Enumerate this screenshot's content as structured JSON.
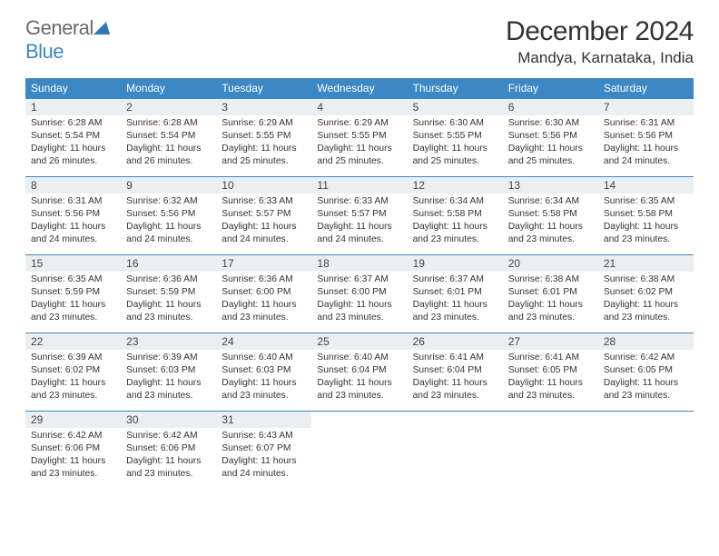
{
  "brand": {
    "part1": "General",
    "part2": "Blue"
  },
  "title": "December 2024",
  "location": "Mandya, Karnataka, India",
  "colors": {
    "header_bg": "#3b88c4",
    "header_text": "#ffffff",
    "daynum_bg": "#eceff1",
    "border": "#3b88c4",
    "text": "#333333",
    "logo_gray": "#6a6a6a",
    "logo_blue": "#3b88c4",
    "page_bg": "#ffffff"
  },
  "typography": {
    "title_fontsize": 30,
    "location_fontsize": 17,
    "dayhdr_fontsize": 12,
    "daynum_fontsize": 12,
    "body_fontsize": 10.3
  },
  "layout": {
    "columns": 7,
    "cell_min_height": 86
  },
  "weekdays": [
    "Sunday",
    "Monday",
    "Tuesday",
    "Wednesday",
    "Thursday",
    "Friday",
    "Saturday"
  ],
  "days": [
    {
      "n": "1",
      "sr": "Sunrise: 6:28 AM",
      "ss": "Sunset: 5:54 PM",
      "d1": "Daylight: 11 hours",
      "d2": "and 26 minutes."
    },
    {
      "n": "2",
      "sr": "Sunrise: 6:28 AM",
      "ss": "Sunset: 5:54 PM",
      "d1": "Daylight: 11 hours",
      "d2": "and 26 minutes."
    },
    {
      "n": "3",
      "sr": "Sunrise: 6:29 AM",
      "ss": "Sunset: 5:55 PM",
      "d1": "Daylight: 11 hours",
      "d2": "and 25 minutes."
    },
    {
      "n": "4",
      "sr": "Sunrise: 6:29 AM",
      "ss": "Sunset: 5:55 PM",
      "d1": "Daylight: 11 hours",
      "d2": "and 25 minutes."
    },
    {
      "n": "5",
      "sr": "Sunrise: 6:30 AM",
      "ss": "Sunset: 5:55 PM",
      "d1": "Daylight: 11 hours",
      "d2": "and 25 minutes."
    },
    {
      "n": "6",
      "sr": "Sunrise: 6:30 AM",
      "ss": "Sunset: 5:56 PM",
      "d1": "Daylight: 11 hours",
      "d2": "and 25 minutes."
    },
    {
      "n": "7",
      "sr": "Sunrise: 6:31 AM",
      "ss": "Sunset: 5:56 PM",
      "d1": "Daylight: 11 hours",
      "d2": "and 24 minutes."
    },
    {
      "n": "8",
      "sr": "Sunrise: 6:31 AM",
      "ss": "Sunset: 5:56 PM",
      "d1": "Daylight: 11 hours",
      "d2": "and 24 minutes."
    },
    {
      "n": "9",
      "sr": "Sunrise: 6:32 AM",
      "ss": "Sunset: 5:56 PM",
      "d1": "Daylight: 11 hours",
      "d2": "and 24 minutes."
    },
    {
      "n": "10",
      "sr": "Sunrise: 6:33 AM",
      "ss": "Sunset: 5:57 PM",
      "d1": "Daylight: 11 hours",
      "d2": "and 24 minutes."
    },
    {
      "n": "11",
      "sr": "Sunrise: 6:33 AM",
      "ss": "Sunset: 5:57 PM",
      "d1": "Daylight: 11 hours",
      "d2": "and 24 minutes."
    },
    {
      "n": "12",
      "sr": "Sunrise: 6:34 AM",
      "ss": "Sunset: 5:58 PM",
      "d1": "Daylight: 11 hours",
      "d2": "and 23 minutes."
    },
    {
      "n": "13",
      "sr": "Sunrise: 6:34 AM",
      "ss": "Sunset: 5:58 PM",
      "d1": "Daylight: 11 hours",
      "d2": "and 23 minutes."
    },
    {
      "n": "14",
      "sr": "Sunrise: 6:35 AM",
      "ss": "Sunset: 5:58 PM",
      "d1": "Daylight: 11 hours",
      "d2": "and 23 minutes."
    },
    {
      "n": "15",
      "sr": "Sunrise: 6:35 AM",
      "ss": "Sunset: 5:59 PM",
      "d1": "Daylight: 11 hours",
      "d2": "and 23 minutes."
    },
    {
      "n": "16",
      "sr": "Sunrise: 6:36 AM",
      "ss": "Sunset: 5:59 PM",
      "d1": "Daylight: 11 hours",
      "d2": "and 23 minutes."
    },
    {
      "n": "17",
      "sr": "Sunrise: 6:36 AM",
      "ss": "Sunset: 6:00 PM",
      "d1": "Daylight: 11 hours",
      "d2": "and 23 minutes."
    },
    {
      "n": "18",
      "sr": "Sunrise: 6:37 AM",
      "ss": "Sunset: 6:00 PM",
      "d1": "Daylight: 11 hours",
      "d2": "and 23 minutes."
    },
    {
      "n": "19",
      "sr": "Sunrise: 6:37 AM",
      "ss": "Sunset: 6:01 PM",
      "d1": "Daylight: 11 hours",
      "d2": "and 23 minutes."
    },
    {
      "n": "20",
      "sr": "Sunrise: 6:38 AM",
      "ss": "Sunset: 6:01 PM",
      "d1": "Daylight: 11 hours",
      "d2": "and 23 minutes."
    },
    {
      "n": "21",
      "sr": "Sunrise: 6:38 AM",
      "ss": "Sunset: 6:02 PM",
      "d1": "Daylight: 11 hours",
      "d2": "and 23 minutes."
    },
    {
      "n": "22",
      "sr": "Sunrise: 6:39 AM",
      "ss": "Sunset: 6:02 PM",
      "d1": "Daylight: 11 hours",
      "d2": "and 23 minutes."
    },
    {
      "n": "23",
      "sr": "Sunrise: 6:39 AM",
      "ss": "Sunset: 6:03 PM",
      "d1": "Daylight: 11 hours",
      "d2": "and 23 minutes."
    },
    {
      "n": "24",
      "sr": "Sunrise: 6:40 AM",
      "ss": "Sunset: 6:03 PM",
      "d1": "Daylight: 11 hours",
      "d2": "and 23 minutes."
    },
    {
      "n": "25",
      "sr": "Sunrise: 6:40 AM",
      "ss": "Sunset: 6:04 PM",
      "d1": "Daylight: 11 hours",
      "d2": "and 23 minutes."
    },
    {
      "n": "26",
      "sr": "Sunrise: 6:41 AM",
      "ss": "Sunset: 6:04 PM",
      "d1": "Daylight: 11 hours",
      "d2": "and 23 minutes."
    },
    {
      "n": "27",
      "sr": "Sunrise: 6:41 AM",
      "ss": "Sunset: 6:05 PM",
      "d1": "Daylight: 11 hours",
      "d2": "and 23 minutes."
    },
    {
      "n": "28",
      "sr": "Sunrise: 6:42 AM",
      "ss": "Sunset: 6:05 PM",
      "d1": "Daylight: 11 hours",
      "d2": "and 23 minutes."
    },
    {
      "n": "29",
      "sr": "Sunrise: 6:42 AM",
      "ss": "Sunset: 6:06 PM",
      "d1": "Daylight: 11 hours",
      "d2": "and 23 minutes."
    },
    {
      "n": "30",
      "sr": "Sunrise: 6:42 AM",
      "ss": "Sunset: 6:06 PM",
      "d1": "Daylight: 11 hours",
      "d2": "and 23 minutes."
    },
    {
      "n": "31",
      "sr": "Sunrise: 6:43 AM",
      "ss": "Sunset: 6:07 PM",
      "d1": "Daylight: 11 hours",
      "d2": "and 24 minutes."
    }
  ]
}
